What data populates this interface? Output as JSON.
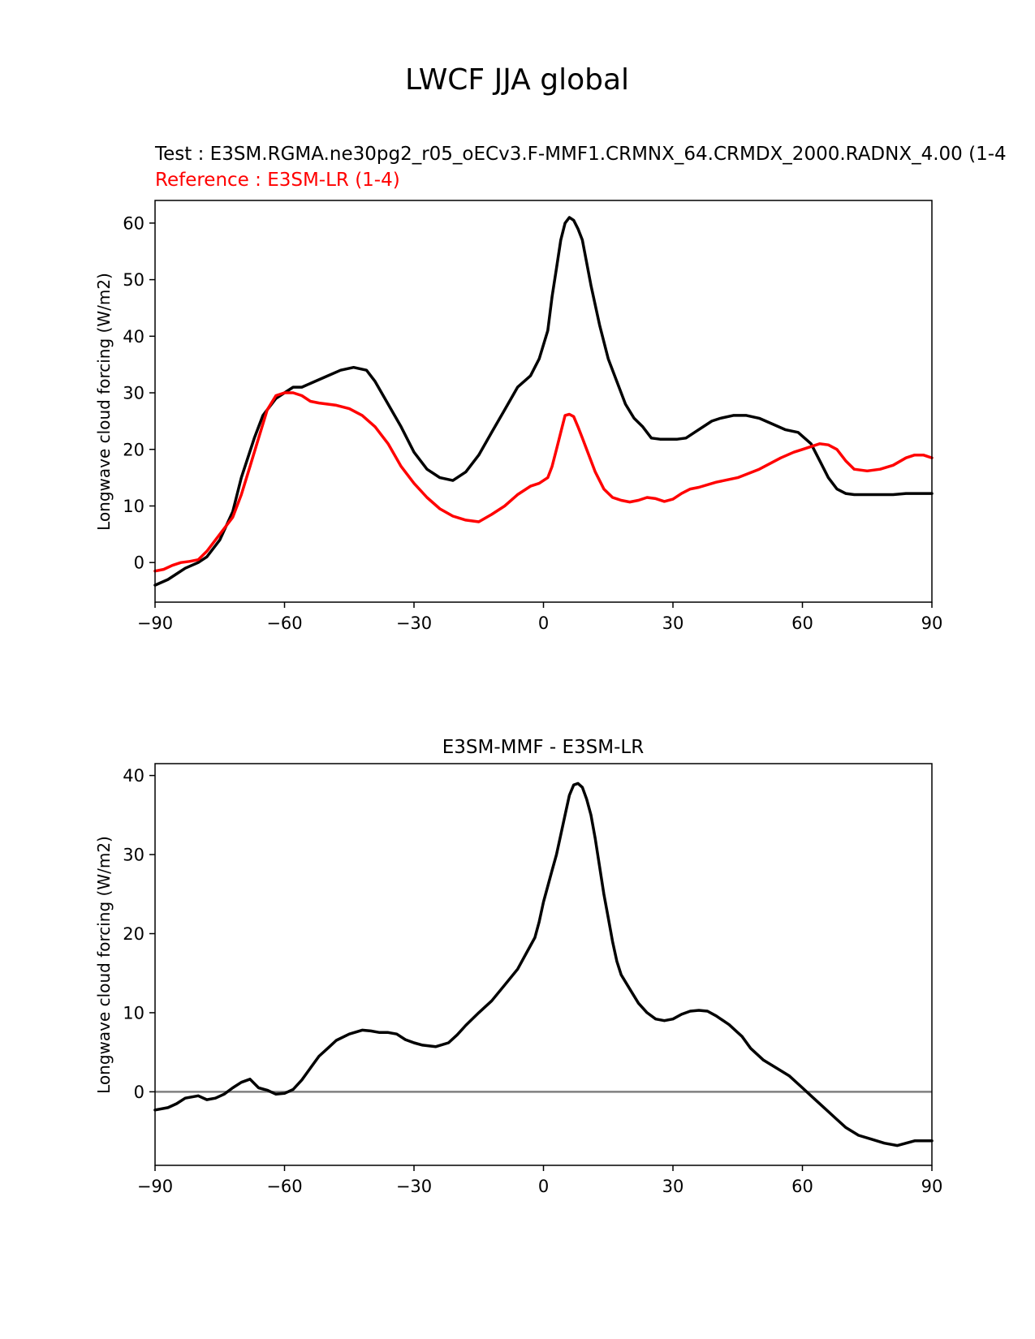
{
  "figure": {
    "title": "LWCF JJA global"
  },
  "chart_data": [
    {
      "type": "line",
      "test_label": "Test : E3SM.RGMA.ne30pg2_r05_oECv3.F-MMF1.CRMNX_64.CRMDX_2000.RADNX_4.00 (1-4",
      "reference_label": "Reference : E3SM-LR (1-4)",
      "title": "",
      "xlabel": "",
      "ylabel": "Longwave cloud forcing (W/m2)",
      "xlim": [
        -90,
        90
      ],
      "ylim": [
        -7,
        64
      ],
      "xticks": [
        -90,
        -60,
        -30,
        0,
        30,
        60,
        90
      ],
      "xtick_labels": [
        "−90",
        "−60",
        "−30",
        "0",
        "30",
        "60",
        "90"
      ],
      "yticks": [
        0,
        10,
        20,
        30,
        40,
        50,
        60
      ],
      "ytick_labels": [
        "0",
        "10",
        "20",
        "30",
        "40",
        "50",
        "60"
      ],
      "series": [
        {
          "name": "Test",
          "color": "#000000",
          "x": [
            -90,
            -87,
            -85,
            -83,
            -80,
            -78,
            -75,
            -72,
            -70,
            -67,
            -65,
            -62,
            -60,
            -58,
            -56,
            -53,
            -50,
            -47,
            -44,
            -41,
            -39,
            -36,
            -33,
            -30,
            -27,
            -24,
            -21,
            -18,
            -15,
            -12,
            -9,
            -6,
            -3,
            -1,
            1,
            2,
            3,
            4,
            5,
            6,
            7,
            8,
            9,
            10,
            11,
            13,
            15,
            17,
            19,
            21,
            23,
            25,
            27,
            29,
            31,
            33,
            35,
            37,
            39,
            41,
            44,
            47,
            50,
            53,
            56,
            59,
            62,
            64,
            66,
            68,
            70,
            72,
            75,
            78,
            81,
            84,
            87,
            90
          ],
          "values": [
            -4,
            -3,
            -2,
            -1,
            0,
            1,
            4,
            9,
            15,
            22,
            26,
            29,
            30,
            31,
            31,
            32,
            33,
            34,
            34.5,
            34,
            32,
            28,
            24,
            19.5,
            16.5,
            15,
            14.5,
            16,
            19,
            23,
            27,
            31,
            33,
            36,
            41,
            47,
            52,
            57,
            60,
            61,
            60.5,
            59,
            57,
            53,
            49,
            42,
            36,
            32,
            28,
            25.5,
            24,
            22,
            21.8,
            21.8,
            21.8,
            22,
            23,
            24,
            25,
            25.5,
            26,
            26,
            25.5,
            24.5,
            23.5,
            23,
            21,
            18,
            15,
            13,
            12.2,
            12,
            12,
            12,
            12,
            12.2,
            12.2,
            12.2
          ]
        },
        {
          "name": "Reference",
          "color": "#ff0000",
          "x": [
            -90,
            -88,
            -86,
            -84,
            -82,
            -80,
            -78,
            -75,
            -72,
            -70,
            -68,
            -66,
            -64,
            -62,
            -60,
            -58,
            -56,
            -54,
            -52,
            -50,
            -48,
            -45,
            -42,
            -39,
            -36,
            -33,
            -30,
            -27,
            -24,
            -21,
            -18,
            -15,
            -12,
            -9,
            -6,
            -3,
            -1,
            1,
            2,
            3,
            4,
            5,
            6,
            7,
            8,
            9,
            10,
            12,
            14,
            16,
            18,
            20,
            22,
            24,
            26,
            28,
            30,
            32,
            34,
            36,
            40,
            45,
            50,
            55,
            58,
            60,
            62,
            64,
            66,
            68,
            70,
            72,
            75,
            78,
            81,
            84,
            86,
            88,
            90
          ],
          "values": [
            -1.5,
            -1.2,
            -0.5,
            0,
            0.2,
            0.5,
            2,
            5,
            8,
            12,
            17,
            22,
            27,
            29.5,
            30,
            30,
            29.5,
            28.5,
            28.2,
            28,
            27.8,
            27.2,
            26,
            24,
            21,
            17,
            14,
            11.5,
            9.5,
            8.2,
            7.5,
            7.2,
            8.5,
            10,
            12,
            13.5,
            14,
            15,
            17,
            20,
            23,
            26,
            26.2,
            25.8,
            24,
            22,
            20,
            16,
            13,
            11.5,
            11,
            10.7,
            11,
            11.5,
            11.3,
            10.8,
            11.2,
            12.2,
            13,
            13.3,
            14.2,
            15,
            16.5,
            18.5,
            19.5,
            20,
            20.5,
            21,
            20.8,
            20,
            18,
            16.5,
            16.2,
            16.5,
            17.2,
            18.5,
            19,
            19,
            18.5
          ]
        }
      ]
    },
    {
      "type": "line",
      "title": "E3SM-MMF - E3SM-LR",
      "xlabel": "",
      "ylabel": "Longwave cloud forcing (W/m2)",
      "xlim": [
        -90,
        90
      ],
      "ylim": [
        -9.3,
        41.5
      ],
      "xticks": [
        -90,
        -60,
        -30,
        0,
        30,
        60,
        90
      ],
      "xtick_labels": [
        "−90",
        "−60",
        "−30",
        "0",
        "30",
        "60",
        "90"
      ],
      "yticks": [
        0,
        10,
        20,
        30,
        40
      ],
      "ytick_labels": [
        "0",
        "10",
        "20",
        "30",
        "40"
      ],
      "zero_line_color": "#808080",
      "series": [
        {
          "name": "E3SM-MMF - E3SM-LR",
          "color": "#000000",
          "x": [
            -90,
            -87,
            -85,
            -83,
            -80,
            -78,
            -76,
            -74,
            -72,
            -70,
            -68,
            -66,
            -64,
            -62,
            -60,
            -58,
            -56,
            -54,
            -52,
            -50,
            -48,
            -45,
            -42,
            -40,
            -38,
            -36,
            -34,
            -32,
            -30,
            -28,
            -25,
            -22,
            -20,
            -18,
            -15,
            -12,
            -9,
            -6,
            -4,
            -2,
            -1,
            0,
            1,
            2,
            3,
            4,
            5,
            6,
            7,
            8,
            9,
            10,
            11,
            12,
            13,
            14,
            15,
            16,
            17,
            18,
            20,
            22,
            24,
            26,
            28,
            30,
            32,
            34,
            36,
            38,
            40,
            43,
            46,
            48,
            51,
            54,
            57,
            60,
            62,
            65,
            68,
            70,
            73,
            76,
            79,
            82,
            84,
            86,
            88,
            90
          ],
          "values": [
            -2.3,
            -2,
            -1.5,
            -0.8,
            -0.5,
            -1,
            -0.8,
            -0.3,
            0.5,
            1.2,
            1.6,
            0.5,
            0.2,
            -0.3,
            -0.2,
            0.3,
            1.5,
            3,
            4.5,
            5.5,
            6.5,
            7.3,
            7.8,
            7.7,
            7.5,
            7.5,
            7.3,
            6.6,
            6.2,
            5.9,
            5.7,
            6.2,
            7.2,
            8.4,
            10,
            11.5,
            13.5,
            15.5,
            17.5,
            19.5,
            21.5,
            24,
            26,
            28,
            30,
            32.5,
            35,
            37.5,
            38.8,
            39,
            38.5,
            37,
            35,
            32,
            28.5,
            25,
            22,
            19,
            16.5,
            14.8,
            13,
            11.2,
            10,
            9.2,
            9,
            9.2,
            9.8,
            10.2,
            10.3,
            10.2,
            9.6,
            8.5,
            7,
            5.5,
            4,
            3,
            2,
            0.5,
            -0.5,
            -2,
            -3.5,
            -4.5,
            -5.5,
            -6,
            -6.5,
            -6.8,
            -6.5,
            -6.2,
            -6.2,
            -6.2
          ]
        }
      ]
    }
  ]
}
